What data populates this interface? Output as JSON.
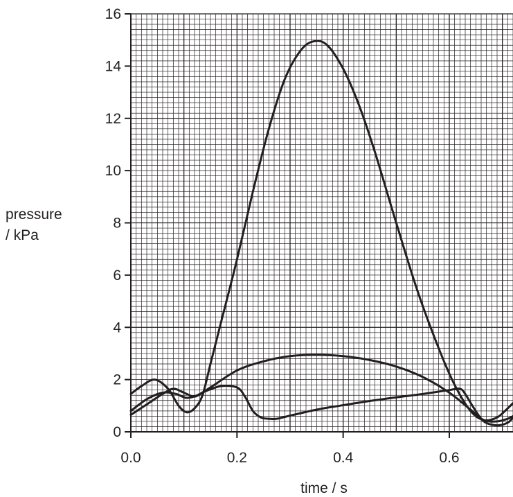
{
  "chart_data": {
    "type": "line",
    "title": "",
    "xlabel": "time / s",
    "ylabel_lines": [
      "pressure",
      "/ kPa"
    ],
    "xlim": [
      0,
      0.72
    ],
    "ylim": [
      0,
      16
    ],
    "grid": true,
    "x_ticks": [
      0.0,
      0.2,
      0.4,
      0.6
    ],
    "x_tick_labels": [
      "0.0",
      "0.2",
      "0.4",
      "0.6"
    ],
    "y_ticks": [
      0,
      2,
      4,
      6,
      8,
      10,
      12,
      14,
      16
    ],
    "y_tick_labels": [
      "0",
      "2",
      "4",
      "6",
      "8",
      "10",
      "12",
      "14",
      "16"
    ],
    "colors": {
      "line": "#231f20",
      "grid_minor": "#231f20",
      "grid_major": "#231f20"
    },
    "series": [
      {
        "x": [
          0.0,
          0.02,
          0.045,
          0.07,
          0.09,
          0.105,
          0.12,
          0.135,
          0.15,
          0.17,
          0.2,
          0.23,
          0.26,
          0.29,
          0.32,
          0.345,
          0.37,
          0.4,
          0.43,
          0.46,
          0.5,
          0.54,
          0.58,
          0.61,
          0.64,
          0.665,
          0.69,
          0.71,
          0.72
        ],
        "y": [
          1.45,
          1.75,
          2.0,
          1.65,
          1.0,
          0.75,
          0.9,
          1.4,
          2.6,
          4.2,
          6.6,
          9.2,
          11.6,
          13.5,
          14.6,
          14.95,
          14.8,
          13.9,
          12.5,
          10.7,
          8.0,
          5.4,
          3.2,
          1.8,
          0.8,
          0.45,
          0.55,
          0.9,
          1.1
        ]
      },
      {
        "x": [
          0.0,
          0.03,
          0.06,
          0.085,
          0.105,
          0.125,
          0.15,
          0.2,
          0.25,
          0.3,
          0.35,
          0.4,
          0.45,
          0.5,
          0.55,
          0.6,
          0.64,
          0.665,
          0.69,
          0.71,
          0.72
        ],
        "y": [
          0.8,
          1.25,
          1.5,
          1.45,
          1.3,
          1.4,
          1.7,
          2.35,
          2.7,
          2.9,
          2.95,
          2.9,
          2.75,
          2.5,
          2.1,
          1.5,
          0.85,
          0.45,
          0.4,
          0.5,
          0.6
        ]
      },
      {
        "x": [
          0.0,
          0.03,
          0.06,
          0.08,
          0.1,
          0.12,
          0.14,
          0.17,
          0.2,
          0.215,
          0.23,
          0.245,
          0.26,
          0.275,
          0.3,
          0.35,
          0.4,
          0.45,
          0.5,
          0.55,
          0.6,
          0.62,
          0.63,
          0.645,
          0.665,
          0.69,
          0.71,
          0.72
        ],
        "y": [
          0.65,
          1.05,
          1.45,
          1.65,
          1.5,
          1.35,
          1.55,
          1.75,
          1.7,
          1.35,
          0.8,
          0.55,
          0.5,
          0.5,
          0.62,
          0.85,
          1.02,
          1.18,
          1.32,
          1.45,
          1.6,
          1.65,
          1.45,
          0.95,
          0.4,
          0.25,
          0.35,
          0.55
        ]
      }
    ]
  }
}
